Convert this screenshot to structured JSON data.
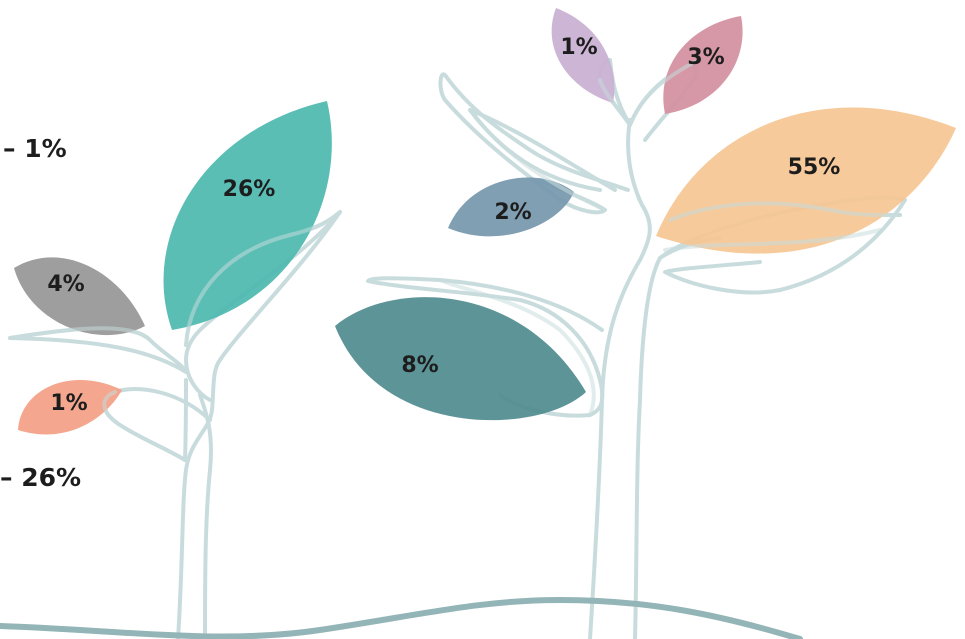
{
  "side_labels": [
    {
      "text": "– 1%"
    },
    {
      "text": "– 26%"
    }
  ],
  "leaves": [
    {
      "label": "26%",
      "color": "#4cb8af"
    },
    {
      "label": "4%",
      "color": "#969696"
    },
    {
      "label": "1%",
      "color": "#f3a084"
    },
    {
      "label": "8%",
      "color": "#4f8b8e"
    },
    {
      "label": "2%",
      "color": "#7597ad"
    },
    {
      "label": "1%",
      "color": "#c9b0d1"
    },
    {
      "label": "3%",
      "color": "#d28f9e"
    },
    {
      "label": "55%",
      "color": "#f6c593"
    }
  ],
  "colors": {
    "stem": "#c9dcdd",
    "ground": "#93b5b7"
  }
}
